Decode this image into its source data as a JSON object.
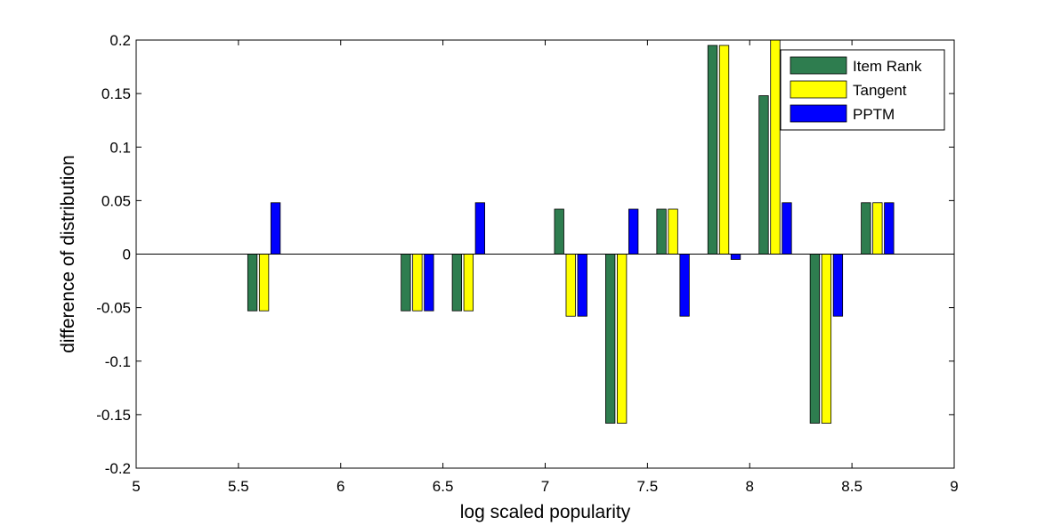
{
  "chart_data": {
    "type": "bar",
    "xlabel": "log scaled popularity",
    "ylabel": "difference of distribution",
    "xlim": [
      5,
      9
    ],
    "ylim": [
      -0.2,
      0.2
    ],
    "x_ticks": [
      "5",
      "5.5",
      "6",
      "6.5",
      "7",
      "7.5",
      "8",
      "8.5",
      "9"
    ],
    "y_ticks": [
      "-0.2",
      "-0.15",
      "-0.1",
      "-0.05",
      "0",
      "0.05",
      "0.1",
      "0.15",
      "0.2"
    ],
    "x": [
      5.625,
      6.375,
      6.625,
      7.125,
      7.375,
      7.625,
      7.875,
      8.125,
      8.375,
      8.625
    ],
    "series": [
      {
        "name": "Item Rank",
        "color": "#2e7d4f",
        "values": [
          -0.053,
          -0.053,
          -0.053,
          0.042,
          -0.158,
          0.042,
          0.195,
          0.148,
          -0.158,
          0.048
        ]
      },
      {
        "name": "Tangent",
        "color": "#ffff00",
        "values": [
          -0.053,
          -0.053,
          -0.053,
          -0.058,
          -0.158,
          0.042,
          0.195,
          0.22,
          -0.158,
          0.048
        ]
      },
      {
        "name": "PPTM",
        "color": "#0000ff",
        "values": [
          0.048,
          -0.053,
          0.048,
          -0.058,
          0.042,
          -0.058,
          -0.005,
          0.048,
          -0.058,
          0.048
        ]
      }
    ],
    "legend_position": "top-right",
    "grid": false
  }
}
